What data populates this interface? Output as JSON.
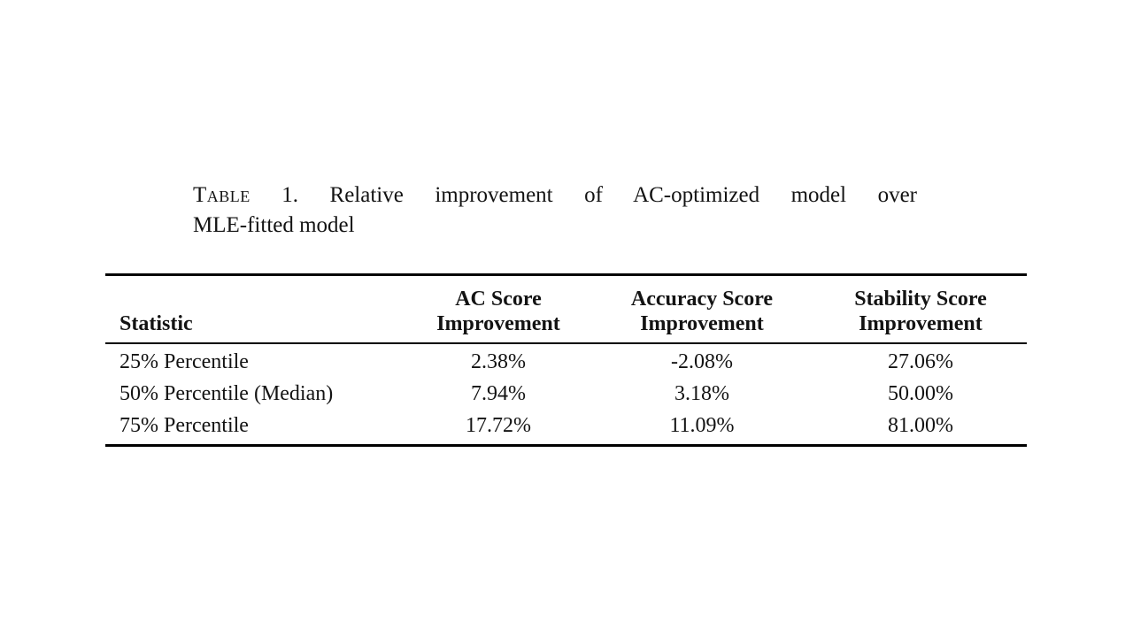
{
  "colors": {
    "background": "#ffffff",
    "text": "#131313",
    "rule": "#000000"
  },
  "caption": {
    "label": "Table",
    "number": "1.",
    "line1_rest": "Relative improvement of AC-optimized model over",
    "line2": "MLE-fitted model"
  },
  "table": {
    "headers": [
      {
        "line1": "Statistic",
        "line2": ""
      },
      {
        "line1": "AC Score",
        "line2": "Improvement"
      },
      {
        "line1": "Accuracy Score",
        "line2": "Improvement"
      },
      {
        "line1": "Stability Score",
        "line2": "Improvement"
      }
    ],
    "rows": [
      [
        "25% Percentile",
        "2.38%",
        "-2.08%",
        "27.06%"
      ],
      [
        "50% Percentile (Median)",
        "7.94%",
        "3.18%",
        "50.00%"
      ],
      [
        "75% Percentile",
        "17.72%",
        "11.09%",
        "81.00%"
      ]
    ]
  }
}
